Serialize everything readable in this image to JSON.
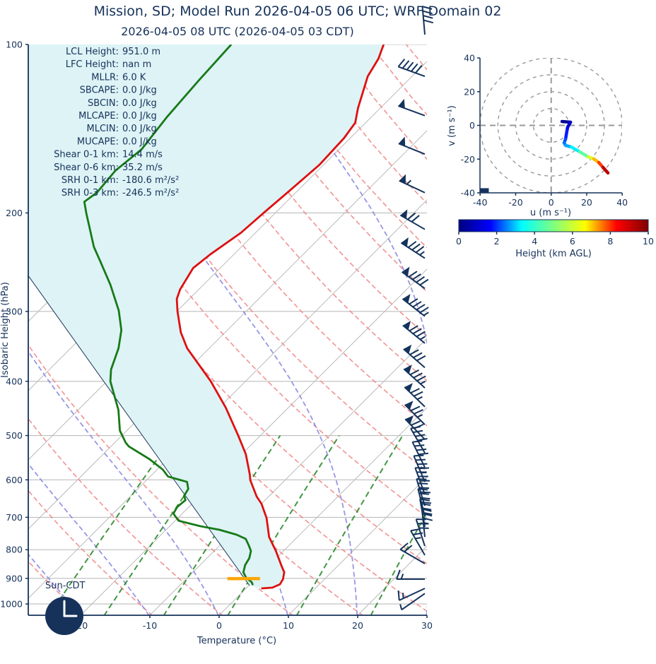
{
  "title": "Mission, SD; Model Run 2026-04-05 06 UTC; WRF Domain 02",
  "subtitle": "2026-04-05 08 UTC  (2026-04-05 03 CDT)",
  "skewt": {
    "xlabel": "Temperature (°C)",
    "ylabel": "Isobaric Height (hPa)",
    "pressure_ticks": [
      100,
      200,
      300,
      400,
      500,
      600,
      700,
      800,
      900,
      1000
    ],
    "temperature_ticks": [
      -20,
      -10,
      0,
      10,
      20,
      30
    ],
    "annotations": [
      {
        "label": "LCL Height:",
        "value": "951.0 m"
      },
      {
        "label": "LFC Height:",
        "value": "nan m"
      },
      {
        "label": "MLLR:",
        "value": "6.0 K"
      },
      {
        "label": "SBCAPE:",
        "value": "0.0 J/kg"
      },
      {
        "label": "SBCIN:",
        "value": "0.0 J/kg"
      },
      {
        "label": "MLCAPE:",
        "value": "0.0 J/kg"
      },
      {
        "label": "MLCIN:",
        "value": "0.0 J/kg"
      },
      {
        "label": "MUCAPE:",
        "value": "0.0 J/kg"
      },
      {
        "label": "Shear 0-1 km:",
        "value": "14.4 m/s"
      },
      {
        "label": "Shear 0-6 km:",
        "value": "35.2 m/s"
      },
      {
        "label": "SRH 0-1 km:",
        "value": "-180.6 m²/s²"
      },
      {
        "label": "SRH 0-3 km:",
        "value": "-246.5 m²/s²"
      }
    ],
    "sun_label": "Sun-CDT",
    "clock_icon_time": "03:00"
  },
  "hodograph": {
    "xlabel": "u (m s⁻¹)",
    "ylabel": "v (m s⁻¹)",
    "u_ticks": [
      -40,
      -20,
      0,
      20,
      40
    ],
    "v_ticks": [
      -40,
      -20,
      0,
      20,
      40
    ],
    "ring_radii_ms": [
      10,
      20,
      30,
      40
    ]
  },
  "colorbar": {
    "label": "Height (km AGL)",
    "ticks": [
      0,
      2,
      4,
      6,
      8,
      10
    ],
    "gradient": [
      "#00007f",
      "#0000ff",
      "#00ffff",
      "#7fff7f",
      "#ffff00",
      "#ff0000",
      "#7f0000"
    ]
  },
  "colors": {
    "ink": "#16325a",
    "temperature": "#dd1111",
    "dewpoint": "#177a17",
    "parcel": "#22365a",
    "fill_between": "#ddf3f6",
    "isotherm": "#bcbcbc",
    "pressure_line": "#b5b5b5",
    "dry_adiabat": "#f08080",
    "moist_adiabat": "#8585e0",
    "mixing_ratio": "#2e8b2e",
    "barb": "#14335c",
    "lcl_marker": "#ffa500",
    "hodo_grid": "#999999"
  },
  "chart_data": {
    "type": "skewt+hodograph",
    "skewt": {
      "axes": {
        "pressure_range_hPa": [
          100,
          1050
        ],
        "temp_at_bottom_range_C": [
          -27.6,
          30.0
        ],
        "skew_deg": 45,
        "log_pressure": true
      },
      "temperature_profile": {
        "pressure_hPa": [
          100,
          106,
          114,
          130,
          138,
          147,
          164,
          184,
          200,
          217,
          237,
          251,
          274,
          285,
          300,
          327,
          349,
          400,
          446,
          501,
          540,
          587,
          601,
          643,
          662,
          702,
          759,
          804,
          852,
          878,
          903,
          922,
          935,
          938
        ],
        "temp_C": [
          -58.7,
          -57.4,
          -56.4,
          -53.2,
          -51.5,
          -50.9,
          -50.6,
          -51.2,
          -51.7,
          -52.1,
          -53.4,
          -53.9,
          -52.7,
          -51.8,
          -49.9,
          -46.4,
          -43.2,
          -35.0,
          -29.0,
          -23.1,
          -19.4,
          -15.9,
          -15.0,
          -11.7,
          -10.0,
          -7.2,
          -4.1,
          -1.1,
          1.7,
          3.2,
          4.0,
          4.3,
          3.7,
          2.2
        ]
      },
      "dewpoint_profile": {
        "pressure_hPa": [
          100,
          116,
          135,
          154,
          168,
          184,
          191,
          200,
          217,
          230,
          244,
          269,
          299,
          324,
          349,
          381,
          400,
          420,
          450,
          490,
          515,
          523,
          551,
          575,
          592,
          605,
          623,
          641,
          652,
          671,
          689,
          695,
          710,
          726,
          737,
          752,
          765,
          786,
          804,
          828,
          852,
          878,
          898,
          914,
          925
        ],
        "dewpoint_C": [
          -80.7,
          -80.2,
          -79.5,
          -78.5,
          -79.2,
          -78.7,
          -79.2,
          -77.3,
          -73.8,
          -71.3,
          -68.3,
          -63.4,
          -58.5,
          -55.3,
          -53.1,
          -51.1,
          -49.5,
          -47.3,
          -44.2,
          -41.0,
          -38.4,
          -37.4,
          -32.6,
          -29.2,
          -27.4,
          -23.9,
          -22.7,
          -22.3,
          -21.5,
          -21.7,
          -21.3,
          -20.8,
          -19.5,
          -15.6,
          -12.3,
          -9.1,
          -7.2,
          -5.8,
          -4.7,
          -3.9,
          -3.5,
          -2.7,
          -1.5,
          -0.1,
          0.5
        ]
      },
      "parcel_trace": {
        "pressure_hPa": [
          259,
          927
        ],
        "temp_C": [
          -76.6,
          0.1
        ]
      },
      "lcl_marker": {
        "pressure_hPa": 901,
        "temp_span_C": [
          -4.1,
          0.6
        ]
      },
      "background": {
        "isotherms_C": {
          "min": -110,
          "max": 40,
          "step": 10
        },
        "dry_adiabats_theta_K": {
          "min": 230,
          "max": 430,
          "step": 10
        },
        "moist_adiabats_base_C": {
          "min": -60,
          "max": 40,
          "step": 10
        },
        "mixing_ratio_g_kg": [
          0.5,
          1,
          2,
          4,
          8,
          16,
          32
        ],
        "mixing_ratio_top_hPa": 500
      },
      "wind_barbs": [
        {
          "pressure_hPa": 96,
          "from_deg": 355,
          "speed_ms": 20,
          "pennants": 0,
          "full": 4,
          "half": 0
        },
        {
          "pressure_hPa": 114,
          "from_deg": 290,
          "speed_ms": 25,
          "pennants": 0,
          "full": 5,
          "half": 0
        },
        {
          "pressure_hPa": 134,
          "from_deg": 290,
          "speed_ms": 25,
          "pennants": 1,
          "full": 0,
          "half": 0
        },
        {
          "pressure_hPa": 157,
          "from_deg": 292,
          "speed_ms": 25,
          "pennants": 1,
          "full": 0,
          "half": 0
        },
        {
          "pressure_hPa": 184,
          "from_deg": 295,
          "speed_ms": 27.5,
          "pennants": 1,
          "full": 0,
          "half": 1
        },
        {
          "pressure_hPa": 214,
          "from_deg": 300,
          "speed_ms": 35,
          "pennants": 1,
          "full": 2,
          "half": 0
        },
        {
          "pressure_hPa": 241,
          "from_deg": 303,
          "speed_ms": 42.5,
          "pennants": 1,
          "full": 3,
          "half": 1
        },
        {
          "pressure_hPa": 273,
          "from_deg": 306,
          "speed_ms": 45,
          "pennants": 1,
          "full": 4,
          "half": 0
        },
        {
          "pressure_hPa": 306,
          "from_deg": 308,
          "speed_ms": 47.5,
          "pennants": 1,
          "full": 4,
          "half": 1
        },
        {
          "pressure_hPa": 342,
          "from_deg": 309,
          "speed_ms": 42.5,
          "pennants": 1,
          "full": 3,
          "half": 1
        },
        {
          "pressure_hPa": 378,
          "from_deg": 311,
          "speed_ms": 40,
          "pennants": 1,
          "full": 3,
          "half": 0
        },
        {
          "pressure_hPa": 411,
          "from_deg": 312,
          "speed_ms": 42.5,
          "pennants": 1,
          "full": 3,
          "half": 1
        },
        {
          "pressure_hPa": 444,
          "from_deg": 314,
          "speed_ms": 37.5,
          "pennants": 1,
          "full": 2,
          "half": 1
        },
        {
          "pressure_hPa": 478,
          "from_deg": 315,
          "speed_ms": 37.5,
          "pennants": 1,
          "full": 2,
          "half": 1
        },
        {
          "pressure_hPa": 508,
          "from_deg": 316,
          "speed_ms": 35,
          "pennants": 1,
          "full": 2,
          "half": 0
        },
        {
          "pressure_hPa": 537,
          "from_deg": 330,
          "speed_ms": 20,
          "pennants": 0,
          "full": 4,
          "half": 0
        },
        {
          "pressure_hPa": 570,
          "from_deg": 334,
          "speed_ms": 20,
          "pennants": 0,
          "full": 4,
          "half": 0
        },
        {
          "pressure_hPa": 605,
          "from_deg": 337,
          "speed_ms": 22.5,
          "pennants": 0,
          "full": 4,
          "half": 1
        },
        {
          "pressure_hPa": 637,
          "from_deg": 340,
          "speed_ms": 20,
          "pennants": 0,
          "full": 4,
          "half": 0
        },
        {
          "pressure_hPa": 668,
          "from_deg": 343,
          "speed_ms": 20,
          "pennants": 0,
          "full": 4,
          "half": 0
        },
        {
          "pressure_hPa": 697,
          "from_deg": 346,
          "speed_ms": 20,
          "pennants": 0,
          "full": 4,
          "half": 0
        },
        {
          "pressure_hPa": 728,
          "from_deg": 350,
          "speed_ms": 20,
          "pennants": 0,
          "full": 4,
          "half": 0
        },
        {
          "pressure_hPa": 759,
          "from_deg": 354,
          "speed_ms": 17.5,
          "pennants": 0,
          "full": 3,
          "half": 1
        },
        {
          "pressure_hPa": 788,
          "from_deg": 342,
          "speed_ms": 15,
          "pennants": 0,
          "full": 3,
          "half": 0
        },
        {
          "pressure_hPa": 818,
          "from_deg": 330,
          "speed_ms": 12.5,
          "pennants": 0,
          "full": 2,
          "half": 1
        },
        {
          "pressure_hPa": 847,
          "from_deg": 300,
          "speed_ms": 10,
          "pennants": 0,
          "full": 2,
          "half": 0
        },
        {
          "pressure_hPa": 903,
          "from_deg": 270,
          "speed_ms": 7.5,
          "pennants": 0,
          "full": 1,
          "half": 1
        },
        {
          "pressure_hPa": 938,
          "from_deg": 245,
          "speed_ms": 7.5,
          "pennants": 0,
          "full": 1,
          "half": 1
        },
        {
          "pressure_hPa": 958,
          "from_deg": 235,
          "speed_ms": 2.5,
          "pennants": 0,
          "full": 0,
          "half": 1
        }
      ]
    },
    "hodograph": {
      "u_ms": [
        6.1,
        10.9,
        9.3,
        8.9,
        8.1,
        7.3,
        8.1,
        11.3,
        16.1,
        20.8,
        24.0,
        26.8,
        29.2,
        32.0
      ],
      "v_ms": [
        2.3,
        1.9,
        -1.0,
        -3.1,
        -8.2,
        -10.3,
        -11.9,
        -12.8,
        -15.7,
        -18.6,
        -19.9,
        -22.0,
        -24.9,
        -28.2
      ],
      "height_km": [
        0,
        0.5,
        0.9,
        1.2,
        1.8,
        2.2,
        2.6,
        3.2,
        4.0,
        5.3,
        6.4,
        7.5,
        8.8,
        10
      ],
      "marker_uv_ms": [
        -37.5,
        -38.5
      ]
    }
  }
}
